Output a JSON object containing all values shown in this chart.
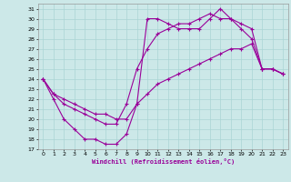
{
  "xlabel": "Windchill (Refroidissement éolien,°C)",
  "xlim": [
    -0.5,
    23.5
  ],
  "ylim": [
    17,
    31.5
  ],
  "xticks": [
    0,
    1,
    2,
    3,
    4,
    5,
    6,
    7,
    8,
    9,
    10,
    11,
    12,
    13,
    14,
    15,
    16,
    17,
    18,
    19,
    20,
    21,
    22,
    23
  ],
  "yticks": [
    17,
    18,
    19,
    20,
    21,
    22,
    23,
    24,
    25,
    26,
    27,
    28,
    29,
    30,
    31
  ],
  "bg_color": "#cce8e8",
  "line_color": "#990099",
  "grid_color": "#aad4d4",
  "lines": [
    {
      "x": [
        0,
        1,
        2,
        3,
        4,
        5,
        6,
        7,
        8,
        9,
        10,
        11,
        12,
        13,
        14,
        15,
        16,
        17,
        18,
        19,
        20,
        21,
        22,
        23
      ],
      "y": [
        24,
        22,
        20,
        19,
        18,
        18,
        17.5,
        17.5,
        18.5,
        21.5,
        30,
        30,
        29.5,
        29,
        29,
        29,
        30,
        31,
        30,
        29.5,
        29,
        25,
        25,
        24.5
      ]
    },
    {
      "x": [
        0,
        1,
        2,
        3,
        4,
        5,
        6,
        7,
        8,
        9,
        10,
        11,
        12,
        13,
        14,
        15,
        16,
        17,
        18,
        19,
        20,
        21,
        22,
        23
      ],
      "y": [
        24,
        22.5,
        21.5,
        21,
        20.5,
        20,
        19.5,
        19.5,
        21.5,
        25,
        27,
        28.5,
        29,
        29.5,
        29.5,
        30,
        30.5,
        30,
        30,
        29,
        28,
        25,
        25,
        24.5
      ]
    },
    {
      "x": [
        0,
        1,
        2,
        3,
        4,
        5,
        6,
        7,
        8,
        9,
        10,
        11,
        12,
        13,
        14,
        15,
        16,
        17,
        18,
        19,
        20,
        21,
        22,
        23
      ],
      "y": [
        24,
        22.5,
        22,
        21.5,
        21,
        20.5,
        20.5,
        20,
        20,
        21.5,
        22.5,
        23.5,
        24,
        24.5,
        25,
        25.5,
        26,
        26.5,
        27,
        27,
        27.5,
        25,
        25,
        24.5
      ]
    }
  ]
}
